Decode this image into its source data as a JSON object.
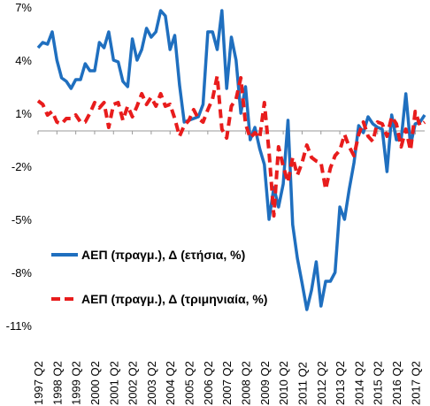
{
  "chart_data": {
    "type": "line",
    "title": "",
    "xlabel": "",
    "ylabel": "",
    "ylim": [
      -11,
      7
    ],
    "yticks": [
      "7%",
      "4%",
      "1%",
      "-2%",
      "-5%",
      "-8%",
      "-11%"
    ],
    "ytick_values": [
      7,
      4,
      1,
      -2,
      -5,
      -8,
      -11
    ],
    "xticks": [
      "1997 Q2",
      "1998 Q2",
      "1999 Q2",
      "2000 Q2",
      "2001 Q2",
      "2002 Q2",
      "2003 Q2",
      "2004 Q2",
      "2005 Q2",
      "2006 Q2",
      "2007 Q2",
      "2008 Q2",
      "2009 Q2",
      "2010 Q2",
      "2011 Q2",
      "2012 Q2",
      "2013 Q2",
      "2014 Q2",
      "2015 Q2",
      "2016 Q2",
      "2017 Q2"
    ],
    "legend_position": "bottom-left",
    "series": [
      {
        "name": "ΑΕΠ (πραγμ.), Δ (ετήσια, %)",
        "color": "#1f6fbf",
        "style": "solid",
        "values": [
          4.7,
          5.0,
          4.9,
          5.6,
          4.0,
          3.0,
          2.8,
          2.4,
          2.9,
          2.9,
          3.8,
          3.4,
          3.4,
          5.0,
          4.7,
          5.6,
          4.0,
          3.9,
          2.8,
          2.5,
          5.2,
          4.0,
          4.6,
          5.8,
          5.3,
          5.6,
          6.8,
          6.5,
          4.6,
          5.4,
          2.6,
          0.5,
          0.6,
          0.7,
          0.8,
          1.5,
          5.6,
          5.6,
          4.6,
          6.8,
          2.4,
          5.3,
          4.0,
          1.0,
          2.5,
          -0.5,
          0.2,
          -1.0,
          -1.9,
          -5.0,
          -3.2,
          -4.3,
          -3.0,
          0.6,
          -5.3,
          -7.2,
          -8.6,
          -10.1,
          -9.0,
          -7.4,
          -9.9,
          -8.5,
          -8.5,
          -8.0,
          -4.3,
          -5.0,
          -3.3,
          -1.8,
          0.3,
          -0.1,
          0.8,
          0.4,
          0.2,
          0.1,
          -2.3,
          0.9,
          -0.5,
          -0.5,
          2.1,
          -0.8,
          0.4,
          0.5,
          0.9
        ]
      },
      {
        "name": "ΑΕΠ (πραγμ.), Δ (τριμηνιαία, %)",
        "color": "#e81c1c",
        "style": "dashed",
        "values": [
          1.7,
          1.5,
          0.9,
          1.1,
          0.5,
          0.4,
          0.7,
          0.7,
          0.9,
          0.5,
          0.5,
          1.0,
          1.6,
          1.3,
          1.6,
          0.2,
          1.5,
          1.6,
          0.6,
          1.4,
          0.8,
          1.4,
          2.1,
          1.5,
          1.9,
          1.4,
          2.1,
          1.4,
          1.5,
          0.7,
          -0.3,
          0.3,
          0.6,
          1.2,
          0.7,
          0.5,
          1.2,
          1.8,
          3.1,
          0.1,
          -0.4,
          1.4,
          1.8,
          3.0,
          0.4,
          -0.4,
          -0.1,
          -0.4,
          1.6,
          -1.2,
          -4.8,
          -0.9,
          -2.0,
          -2.9,
          -1.5,
          -2.5,
          -1.8,
          -0.8,
          -1.5,
          -1.7,
          -1.8,
          -3.3,
          -2.1,
          -1.4,
          -1.1,
          -0.2,
          -0.9,
          -1.4,
          -0.2,
          0.5,
          -0.3,
          -0.6,
          0.5,
          0.4,
          -0.3,
          0.8,
          0.4,
          -0.9,
          0.1,
          -1.1,
          1.1,
          0.3,
          0.5
        ]
      }
    ]
  }
}
